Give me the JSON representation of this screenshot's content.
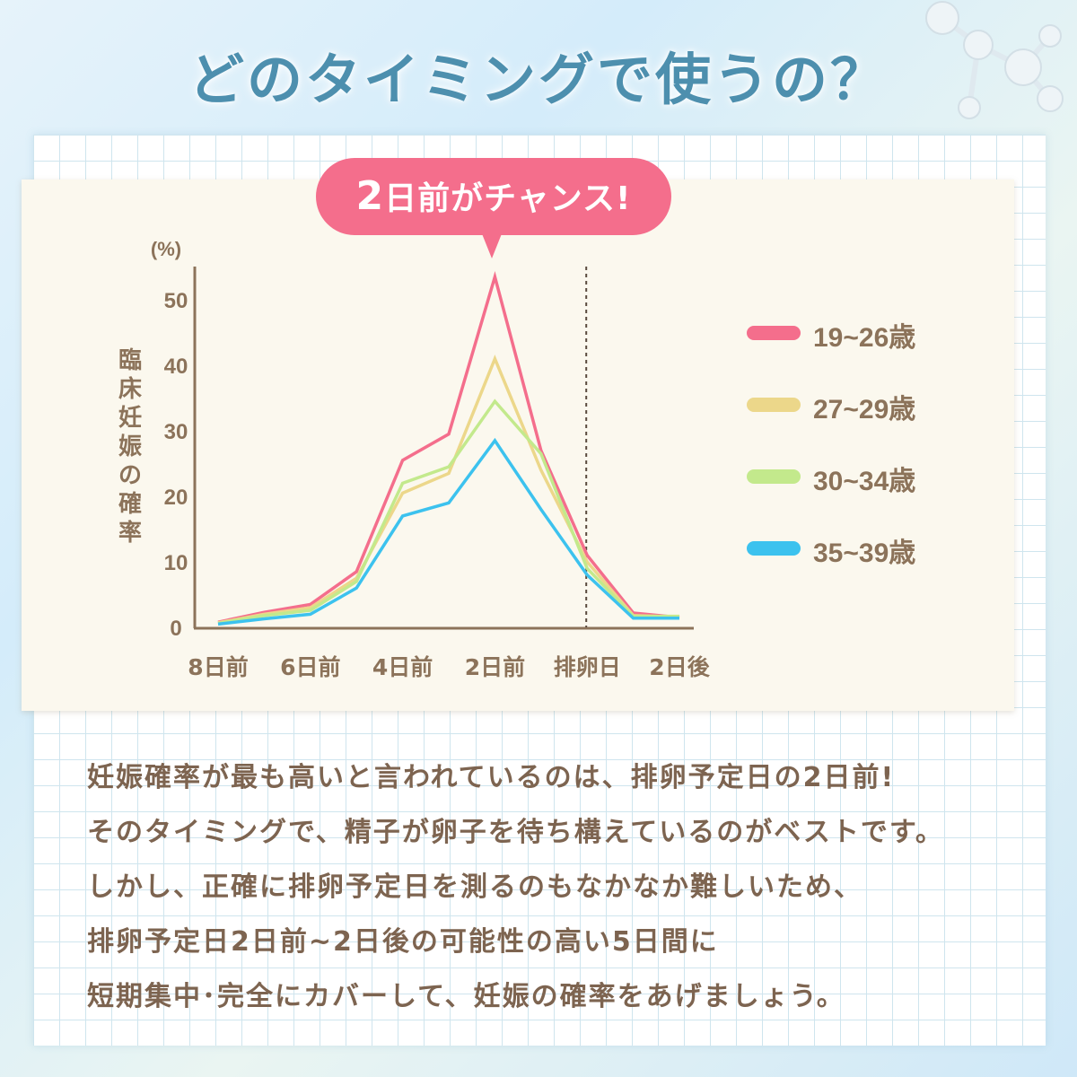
{
  "heading": "どのタイミングで使うの？",
  "callout": {
    "number": "2",
    "text": "日前がチャンス!"
  },
  "chart_data": {
    "type": "line",
    "unit_label": "(%)",
    "ylabel": "臨床妊娠の確率",
    "categories": [
      "8日前",
      "",
      "6日前",
      "",
      "4日前",
      "",
      "2日前",
      "",
      "排卵日",
      "",
      "2日後"
    ],
    "x_tick_labels": [
      "8日前",
      "6日前",
      "4日前",
      "2日前",
      "排卵日",
      "2日後"
    ],
    "y_ticks": [
      0,
      10,
      20,
      30,
      40,
      50
    ],
    "ylim": [
      0,
      55
    ],
    "ovulation_marker": "排卵日",
    "series": [
      {
        "name": "19~26歳",
        "color": "#f46e8c",
        "values": [
          0.8,
          2.3,
          3.5,
          8.5,
          25.5,
          29.5,
          53.5,
          27,
          11,
          2.2,
          1.5
        ]
      },
      {
        "name": "27~29歳",
        "color": "#ecd78a",
        "values": [
          0.7,
          2.0,
          3.0,
          7.5,
          20.5,
          23.5,
          41,
          24,
          10,
          1.8,
          1.6
        ]
      },
      {
        "name": "30~34歳",
        "color": "#c3e98c",
        "values": [
          0.6,
          1.8,
          2.6,
          7.0,
          22,
          24.5,
          34.5,
          26.5,
          9,
          1.7,
          1.7
        ]
      },
      {
        "name": "35~39歳",
        "color": "#3cc2ee",
        "values": [
          0.5,
          1.3,
          2.0,
          6.0,
          17,
          19,
          28.5,
          18,
          8,
          1.4,
          1.4
        ]
      }
    ]
  },
  "body_lines": [
    "妊娠確率が最も高いと言われているのは、排卵予定日の2日前!",
    "そのタイミングで、精子が卵子を待ち構えているのがベストです。",
    "しかし、正確に排卵予定日を測るのもなかなか難しいため、",
    "排卵予定日2日前~2日後の可能性の高い5日間に",
    "短期集中･完全にカバーして、妊娠の確率をあげましょう。"
  ]
}
